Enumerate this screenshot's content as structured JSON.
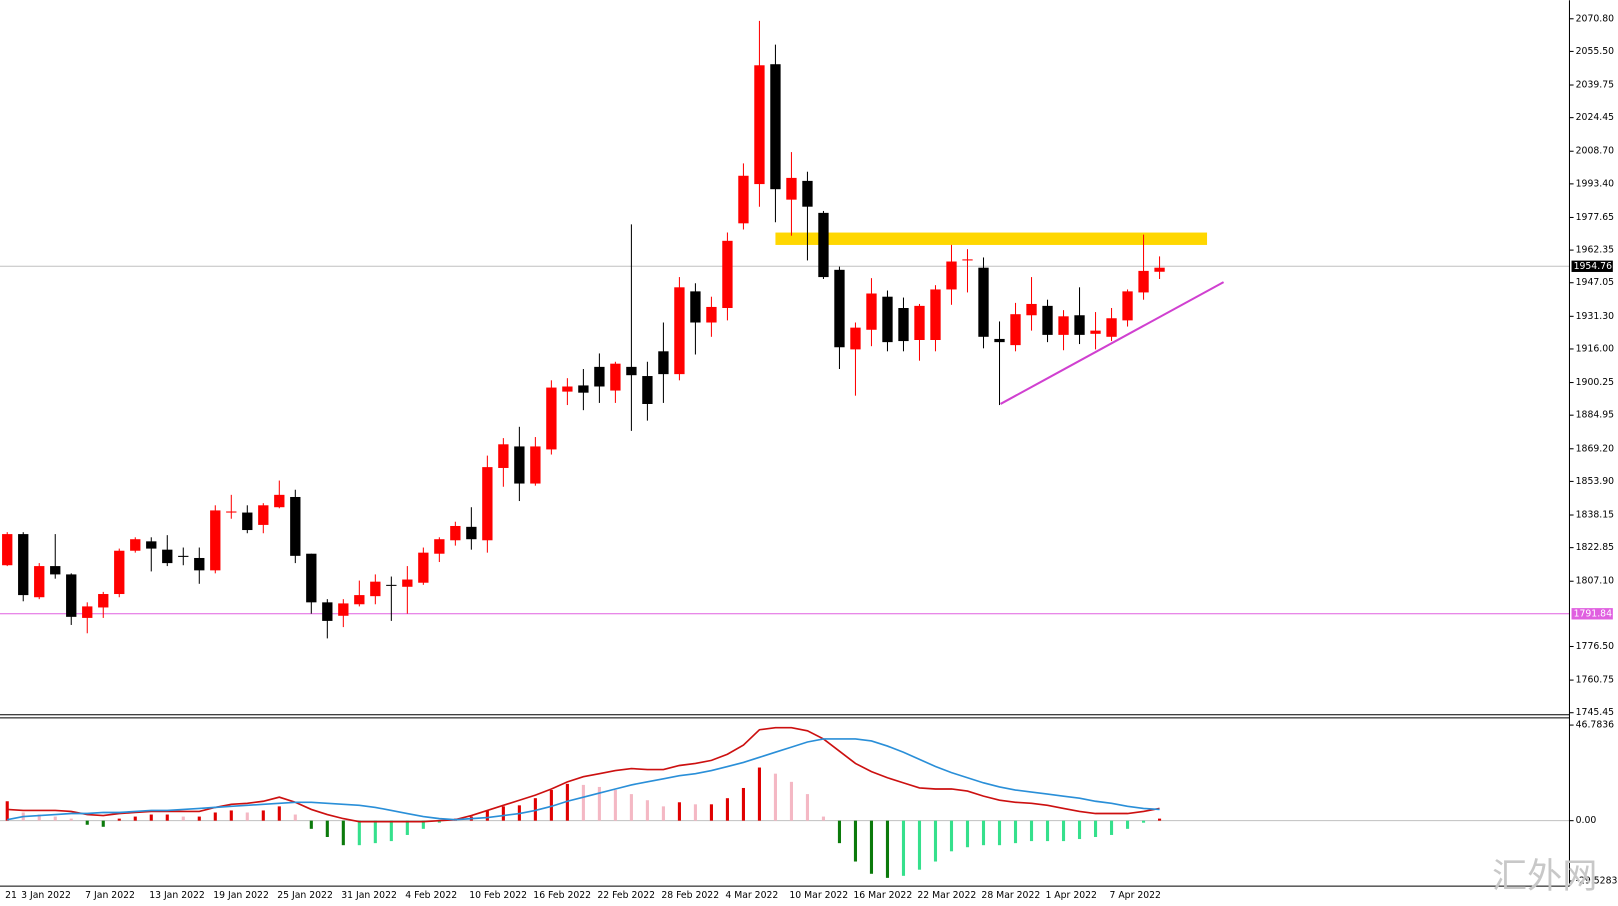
{
  "chart_data": [
    {
      "type": "candlestick",
      "categories": [
        "21",
        "3 Jan 2022",
        null,
        null,
        null,
        "7 Jan 2022",
        null,
        null,
        null,
        "13 Jan 2022",
        null,
        null,
        null,
        "19 Jan 2022",
        null,
        null,
        null,
        "25 Jan 2022",
        null,
        null,
        null,
        "31 Jan 2022",
        null,
        null,
        null,
        "4 Feb 2022",
        null,
        null,
        null,
        "10 Feb 2022",
        null,
        null,
        null,
        "16 Feb 2022",
        null,
        null,
        null,
        "22 Feb 2022",
        null,
        null,
        null,
        "28 Feb 2022",
        null,
        null,
        null,
        "4 Mar 2022",
        null,
        null,
        null,
        "10 Mar 2022",
        null,
        null,
        null,
        "16 Mar 2022",
        null,
        null,
        null,
        "22 Mar 2022",
        null,
        null,
        null,
        "28 Mar 2022",
        null,
        null,
        null,
        "1 Apr 2022",
        null,
        null,
        null,
        "7 Apr 2022",
        null,
        null,
        null
      ],
      "open": [
        1814.6,
        1829.2,
        1799.6,
        1814.2,
        1810.3,
        1789.9,
        1794.8,
        1801.1,
        1821.4,
        1825.8,
        1821.9,
        1819.0,
        1818.0,
        1812.2,
        1839.3,
        1839.3,
        1833.5,
        1841.8,
        1846.6,
        1820.0,
        1797.2,
        1790.9,
        1796.3,
        1800.1,
        1805.4,
        1804.5,
        1806.4,
        1820.0,
        1826.3,
        1832.6,
        1826.3,
        1860.2,
        1870.3,
        1852.9,
        1868.9,
        1896.0,
        1898.9,
        1907.6,
        1896.5,
        1907.6,
        1903.3,
        1914.9,
        1904.2,
        1943.0,
        1928.4,
        1935.2,
        1974.9,
        1993.3,
        2049.5,
        1986.0,
        1994.8,
        1979.8,
        1953.1,
        1915.8,
        1925.0,
        1940.5,
        1935.2,
        1920.2,
        1920.2,
        1943.9,
        1957.5,
        1954.1,
        1920.7,
        1917.8,
        1931.8,
        1936.2,
        1922.6,
        1931.8,
        1923.1,
        1921.7,
        1929.4,
        1942.5,
        1952.2
      ],
      "high": [
        1830.1,
        1830.1,
        1815.6,
        1829.2,
        1810.8,
        1797.2,
        1802.1,
        1822.4,
        1827.7,
        1827.7,
        1828.7,
        1822.9,
        1822.9,
        1842.7,
        1847.6,
        1842.7,
        1843.7,
        1854.3,
        1850.0,
        1820.0,
        1798.7,
        1798.7,
        1807.4,
        1810.3,
        1809.3,
        1814.2,
        1822.9,
        1827.7,
        1835.0,
        1841.8,
        1866.0,
        1874.2,
        1879.5,
        1874.7,
        1901.3,
        1902.3,
        1906.6,
        1913.9,
        1910.0,
        1974.4,
        1910.0,
        1928.4,
        1949.7,
        1946.8,
        1940.5,
        1970.6,
        2003.0,
        2069.8,
        2058.7,
        2008.3,
        1999.1,
        1980.7,
        1954.6,
        1928.4,
        1949.2,
        1943.4,
        1940.1,
        1937.1,
        1945.9,
        1964.8,
        1962.8,
        1958.9,
        1928.9,
        1937.6,
        1949.7,
        1939.1,
        1934.2,
        1944.9,
        1933.3,
        1935.2,
        1943.9,
        1969.6,
        1959.4
      ],
      "low": [
        1814.2,
        1797.7,
        1798.7,
        1808.3,
        1786.6,
        1782.7,
        1789.9,
        1799.6,
        1820.5,
        1811.7,
        1814.2,
        1814.6,
        1805.9,
        1810.8,
        1836.4,
        1829.6,
        1829.6,
        1841.3,
        1815.6,
        1791.9,
        1780.3,
        1785.6,
        1795.3,
        1796.3,
        1788.5,
        1791.9,
        1805.4,
        1816.1,
        1823.8,
        1821.9,
        1820.5,
        1851.4,
        1844.7,
        1851.9,
        1866.5,
        1889.7,
        1887.3,
        1890.7,
        1890.7,
        1877.6,
        1882.4,
        1890.7,
        1901.3,
        1913.4,
        1921.7,
        1929.4,
        1972.0,
        1982.7,
        1975.4,
        1969.1,
        1957.5,
        1948.8,
        1906.6,
        1894.1,
        1917.3,
        1914.9,
        1914.9,
        1910.5,
        1914.9,
        1936.7,
        1942.5,
        1916.3,
        1889.7,
        1914.9,
        1924.6,
        1919.2,
        1915.4,
        1918.3,
        1915.8,
        1919.7,
        1926.5,
        1939.1,
        1948.8
      ],
      "close": [
        1829.2,
        1800.6,
        1814.2,
        1810.3,
        1790.4,
        1795.3,
        1801.1,
        1821.4,
        1826.8,
        1822.4,
        1815.6,
        1818.5,
        1812.2,
        1840.3,
        1839.8,
        1831.1,
        1842.7,
        1847.6,
        1819.0,
        1797.2,
        1788.5,
        1796.7,
        1800.6,
        1806.9,
        1805.0,
        1807.9,
        1820.5,
        1826.8,
        1833.0,
        1826.8,
        1860.6,
        1871.3,
        1852.9,
        1870.3,
        1897.9,
        1898.4,
        1895.5,
        1898.4,
        1909.1,
        1903.7,
        1890.2,
        1904.2,
        1944.9,
        1928.4,
        1935.7,
        1966.7,
        1997.2,
        2049.0,
        1990.9,
        1996.2,
        1982.7,
        1949.7,
        1916.8,
        1926.0,
        1942.0,
        1919.2,
        1919.7,
        1936.2,
        1943.9,
        1957.0,
        1958.0,
        1921.7,
        1919.2,
        1932.3,
        1937.1,
        1922.6,
        1931.3,
        1922.6,
        1924.6,
        1930.4,
        1943.0,
        1952.6,
        1954.1
      ],
      "up_color": "#ff0000",
      "down_color": "#000000",
      "ylim": [
        1744.5,
        2079.5
      ],
      "yticks": [
        {
          "value": 2070.8,
          "label": "2070.80"
        },
        {
          "value": 2055.5,
          "label": "2055.50"
        },
        2039.75,
        2024.45,
        {
          "value": 2008.7,
          "label": "2008.70"
        },
        {
          "value": 1993.4,
          "label": "1993.40"
        },
        1977.65,
        1962.35,
        1947.05,
        {
          "value": 1931.3,
          "label": "1931.30"
        },
        {
          "value": 1916,
          "label": "1916.00"
        },
        1900.25,
        1884.95,
        {
          "value": 1869.2,
          "label": "1869.20"
        },
        {
          "value": 1853.9,
          "label": "1853.90"
        },
        1838.15,
        1822.85,
        {
          "value": 1807.1,
          "label": "1807.10"
        },
        {
          "value": 1776.5,
          "label": "1776.50"
        },
        1760.75,
        1745.45
      ],
      "current_price": 1954.76,
      "current_price_color": "#c0c0c0",
      "support_level": 1791.84,
      "support_color": "#e060e0"
    },
    {
      "type": "macd",
      "histogram": [
        9.5,
        4,
        3,
        2,
        1,
        -2,
        -3,
        1,
        2,
        3,
        3,
        2,
        2,
        4,
        5,
        4,
        5,
        7,
        3,
        -4,
        -8,
        -12,
        -12,
        -11,
        -10,
        -7,
        -4,
        -1,
        1,
        2,
        5,
        7,
        7.5,
        11,
        15,
        18,
        17.5,
        16.5,
        15,
        13,
        10,
        7,
        9,
        8,
        8,
        11,
        16,
        26,
        23,
        19,
        13,
        2,
        -11,
        -20,
        -26,
        -28,
        -27,
        -24,
        -20,
        -15,
        -13,
        -12,
        -12,
        -11,
        -10,
        -10,
        -10,
        -9,
        -8,
        -7,
        -4,
        -1,
        1
      ],
      "histogram_colors": [
        "#e00000",
        "#f4b8c4",
        "#0b7a0b",
        "#35e08c"
      ],
      "series": [
        {
          "color": "#cc1010",
          "values": [
            5.5,
            5,
            5,
            5,
            4.5,
            3,
            2.5,
            3.5,
            4,
            4.5,
            4.5,
            4.5,
            4.5,
            6.5,
            8,
            8.5,
            9.5,
            11.5,
            9,
            5.5,
            3,
            1,
            -0.5,
            -0.5,
            -0.5,
            -0.5,
            -0.5,
            0,
            0.5,
            2.5,
            5,
            7.5,
            10,
            12.5,
            15.5,
            19,
            21.5,
            23,
            24.5,
            25.5,
            25,
            25,
            27,
            28,
            29.5,
            32.5,
            37,
            44.5,
            45.5,
            45.5,
            44,
            40,
            34,
            28,
            24,
            21,
            18.5,
            16,
            15.5,
            15.5,
            14.5,
            12,
            10,
            9,
            8.5,
            7.5,
            6,
            4.5,
            3.5,
            3.5,
            3.5,
            4.5,
            6
          ]
        },
        {
          "color": "#2a8fd8",
          "values": [
            0.5,
            2,
            2.5,
            3,
            3.5,
            3.5,
            4,
            4,
            4.5,
            5,
            5,
            5.5,
            6,
            6.5,
            7,
            7.5,
            8,
            8.5,
            9,
            9,
            8.5,
            8,
            7.5,
            6.5,
            5,
            3.5,
            2,
            1,
            0.5,
            1,
            1.5,
            2.5,
            3.5,
            5,
            7,
            9.5,
            11.5,
            13.5,
            15.5,
            17.5,
            19,
            20.5,
            22,
            23,
            24.5,
            26.5,
            28.5,
            31,
            33.5,
            36,
            38.5,
            40,
            40,
            40,
            39,
            36.5,
            33.5,
            30,
            26.5,
            23.5,
            21,
            18.5,
            16.5,
            15,
            14,
            13,
            12,
            11,
            9.5,
            8.5,
            7,
            6,
            5.5
          ]
        }
      ],
      "ylim": [
        -29.5283,
        46.7836
      ],
      "yticks": [
        46.7836,
        {
          "value": 0,
          "label": "0.00"
        },
        -29.5283
      ]
    }
  ],
  "watermark": "汇外网"
}
